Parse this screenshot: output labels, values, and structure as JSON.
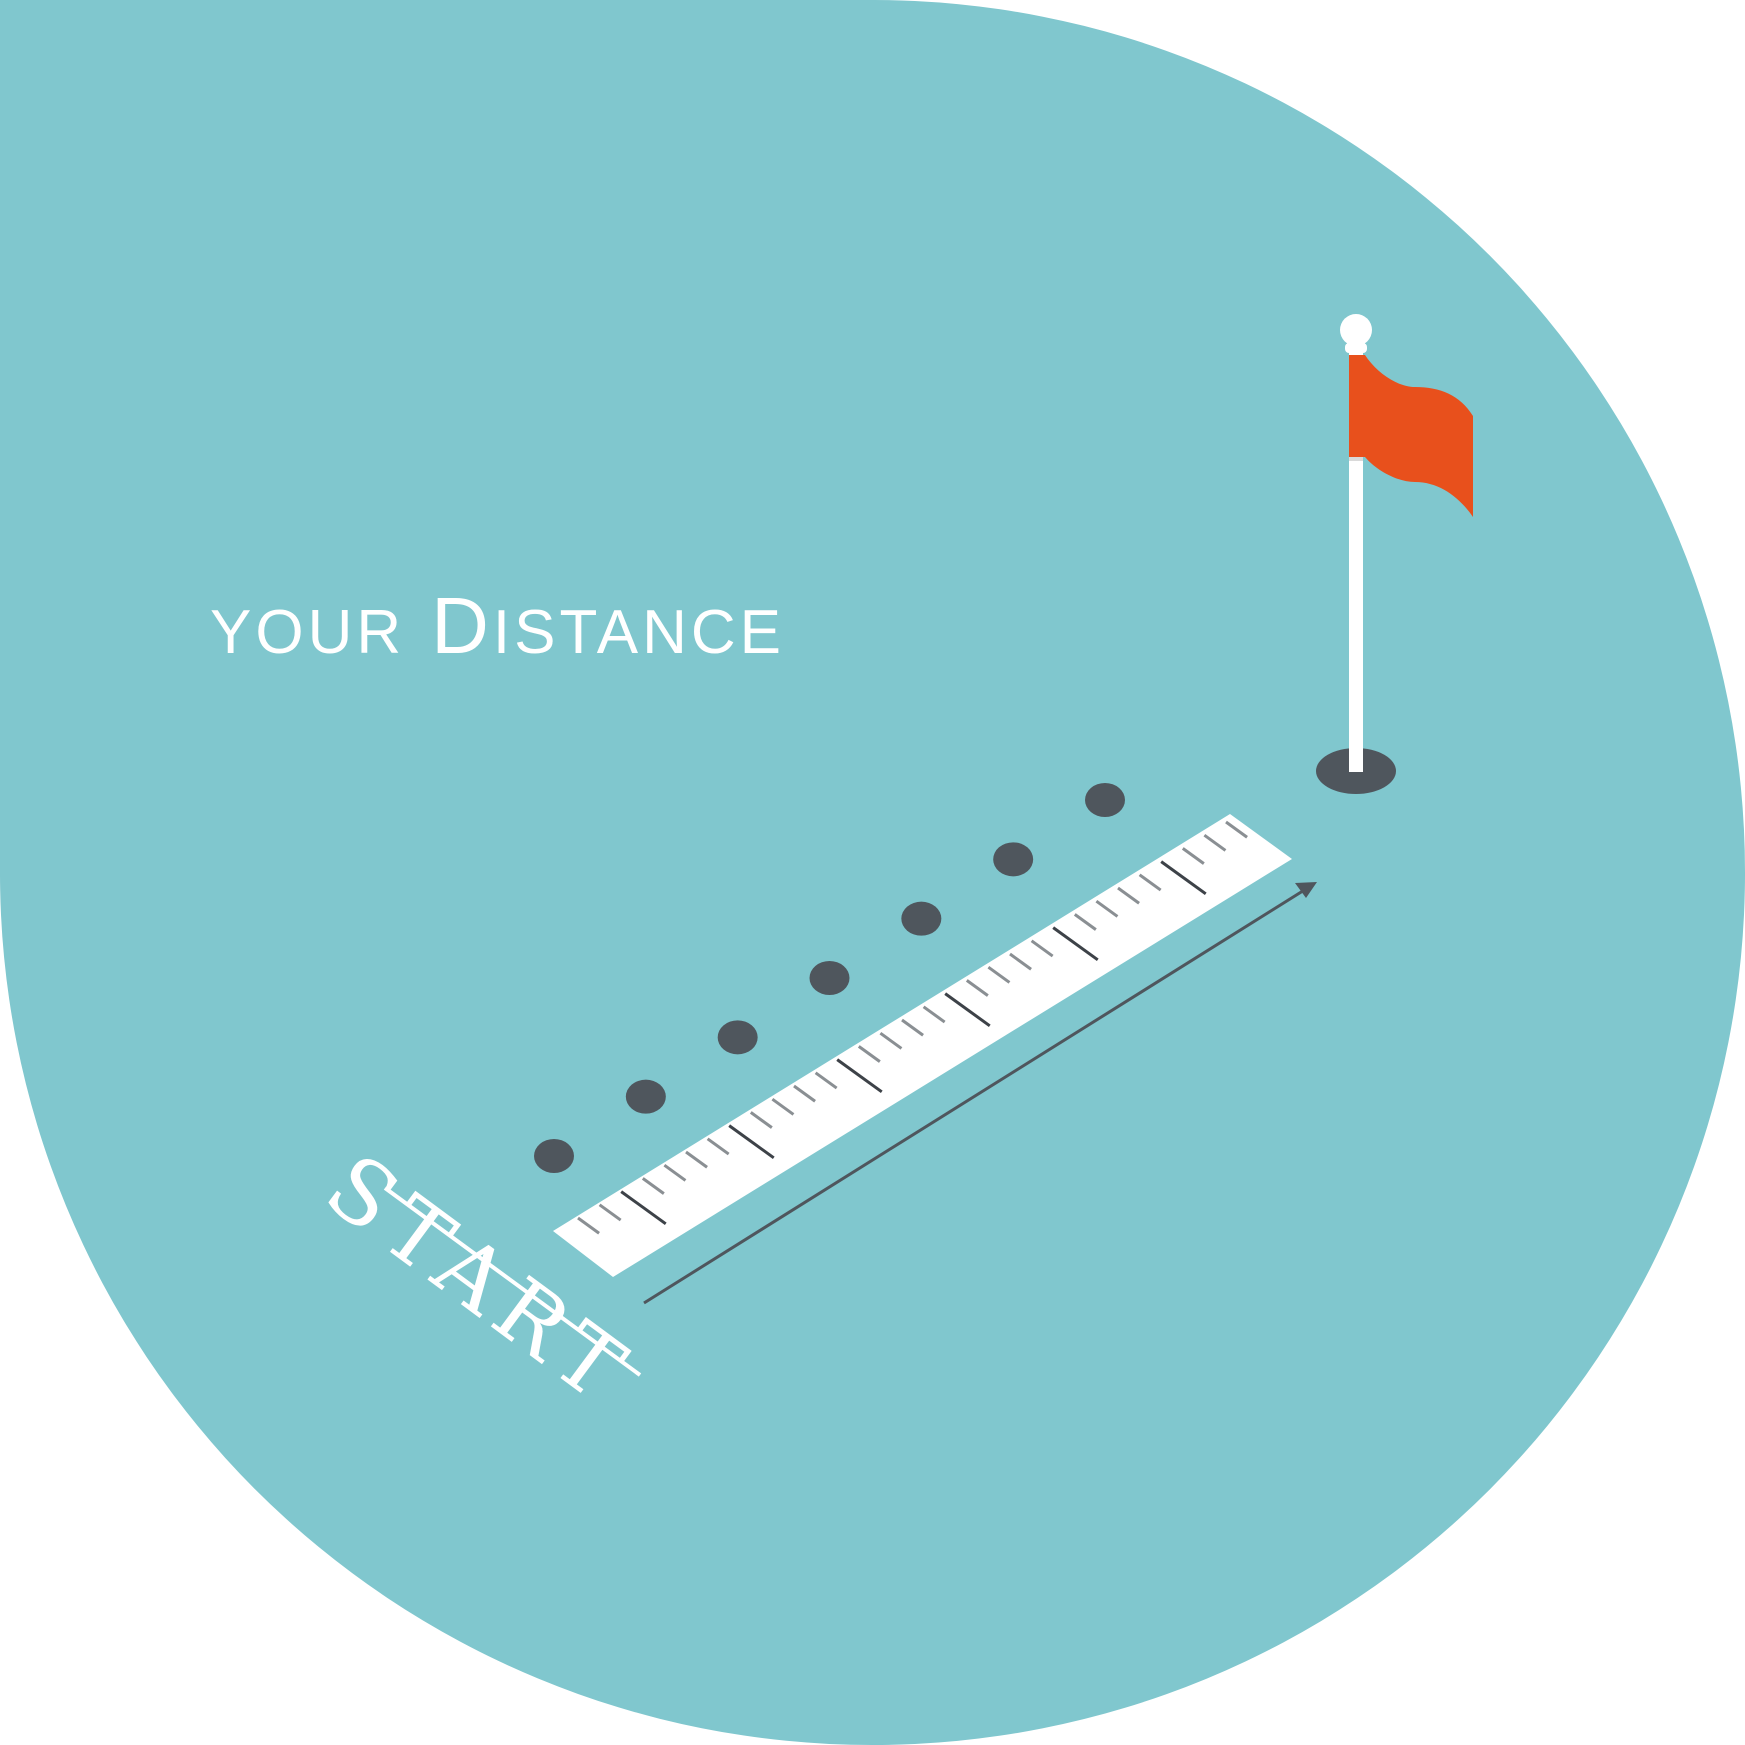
{
  "headline": {
    "line1": "YOUR",
    "line2": "DISTANCE",
    "line1_lead": "Y",
    "line1_rest": "OUR",
    "line2_lead": "D",
    "line2_rest": "ISTANCE"
  },
  "start_label": "START",
  "colors": {
    "background_blob": "#80C7CE",
    "flag": "#E8501C",
    "pole": "#FFFFFF",
    "hole": "#4F565D",
    "footstep": "#4F565D",
    "tape": "#FFFFFF",
    "tick_major": "#3D4248",
    "tick_minor": "#8A8F93",
    "arrow": "#4F565D",
    "text": "#FFFFFF"
  },
  "icons": {
    "flag": "golf-flag-icon",
    "hole": "golf-hole-icon",
    "footsteps": "footstep-dot-icon",
    "tape": "measuring-tape-icon",
    "arrow": "distance-arrow-icon"
  },
  "tape_ticks": {
    "major_every": 5,
    "count": 31
  },
  "footsteps_count": 7
}
